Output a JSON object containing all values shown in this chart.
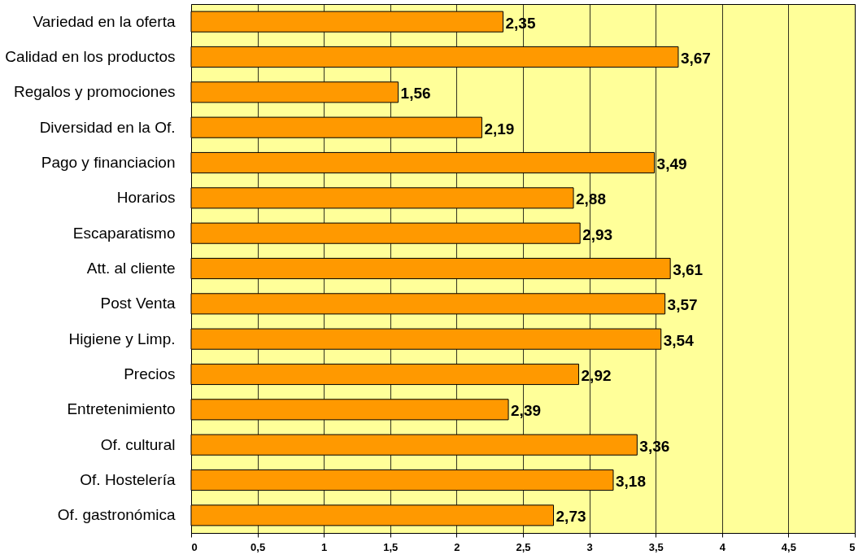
{
  "chart_data": {
    "type": "bar",
    "orientation": "horizontal",
    "categories": [
      "Variedad en la oferta",
      "Calidad en los productos",
      "Regalos y promociones",
      "Diversidad en la Of.",
      "Pago y financiacion",
      "Horarios",
      "Escaparatismo",
      "Att. al cliente",
      "Post Venta",
      "Higiene y Limp.",
      "Precios",
      "Entretenimiento",
      "Of. cultural",
      "Of. Hostelería",
      "Of. gastronómica"
    ],
    "values": [
      2.35,
      3.67,
      1.56,
      2.19,
      3.49,
      2.88,
      2.93,
      3.61,
      3.57,
      3.54,
      2.92,
      2.39,
      3.36,
      3.18,
      2.73
    ],
    "value_labels": [
      "2,35",
      "3,67",
      "1,56",
      "2,19",
      "3,49",
      "2,88",
      "2,93",
      "3,61",
      "3,57",
      "3,54",
      "2,92",
      "2,39",
      "3,36",
      "3,18",
      "2,73"
    ],
    "color": "#ff9900",
    "xlim": [
      0,
      5
    ],
    "xticks": [
      0,
      {
        "value": 0.5,
        "label": "0,5"
      },
      1,
      {
        "value": 1.5,
        "label": "1,5"
      },
      2,
      {
        "value": 2.5,
        "label": "2,5"
      },
      3,
      {
        "value": 3.5,
        "label": "3,5"
      },
      4,
      {
        "value": 4.5,
        "label": "4,5"
      },
      5
    ],
    "grid": "x"
  }
}
